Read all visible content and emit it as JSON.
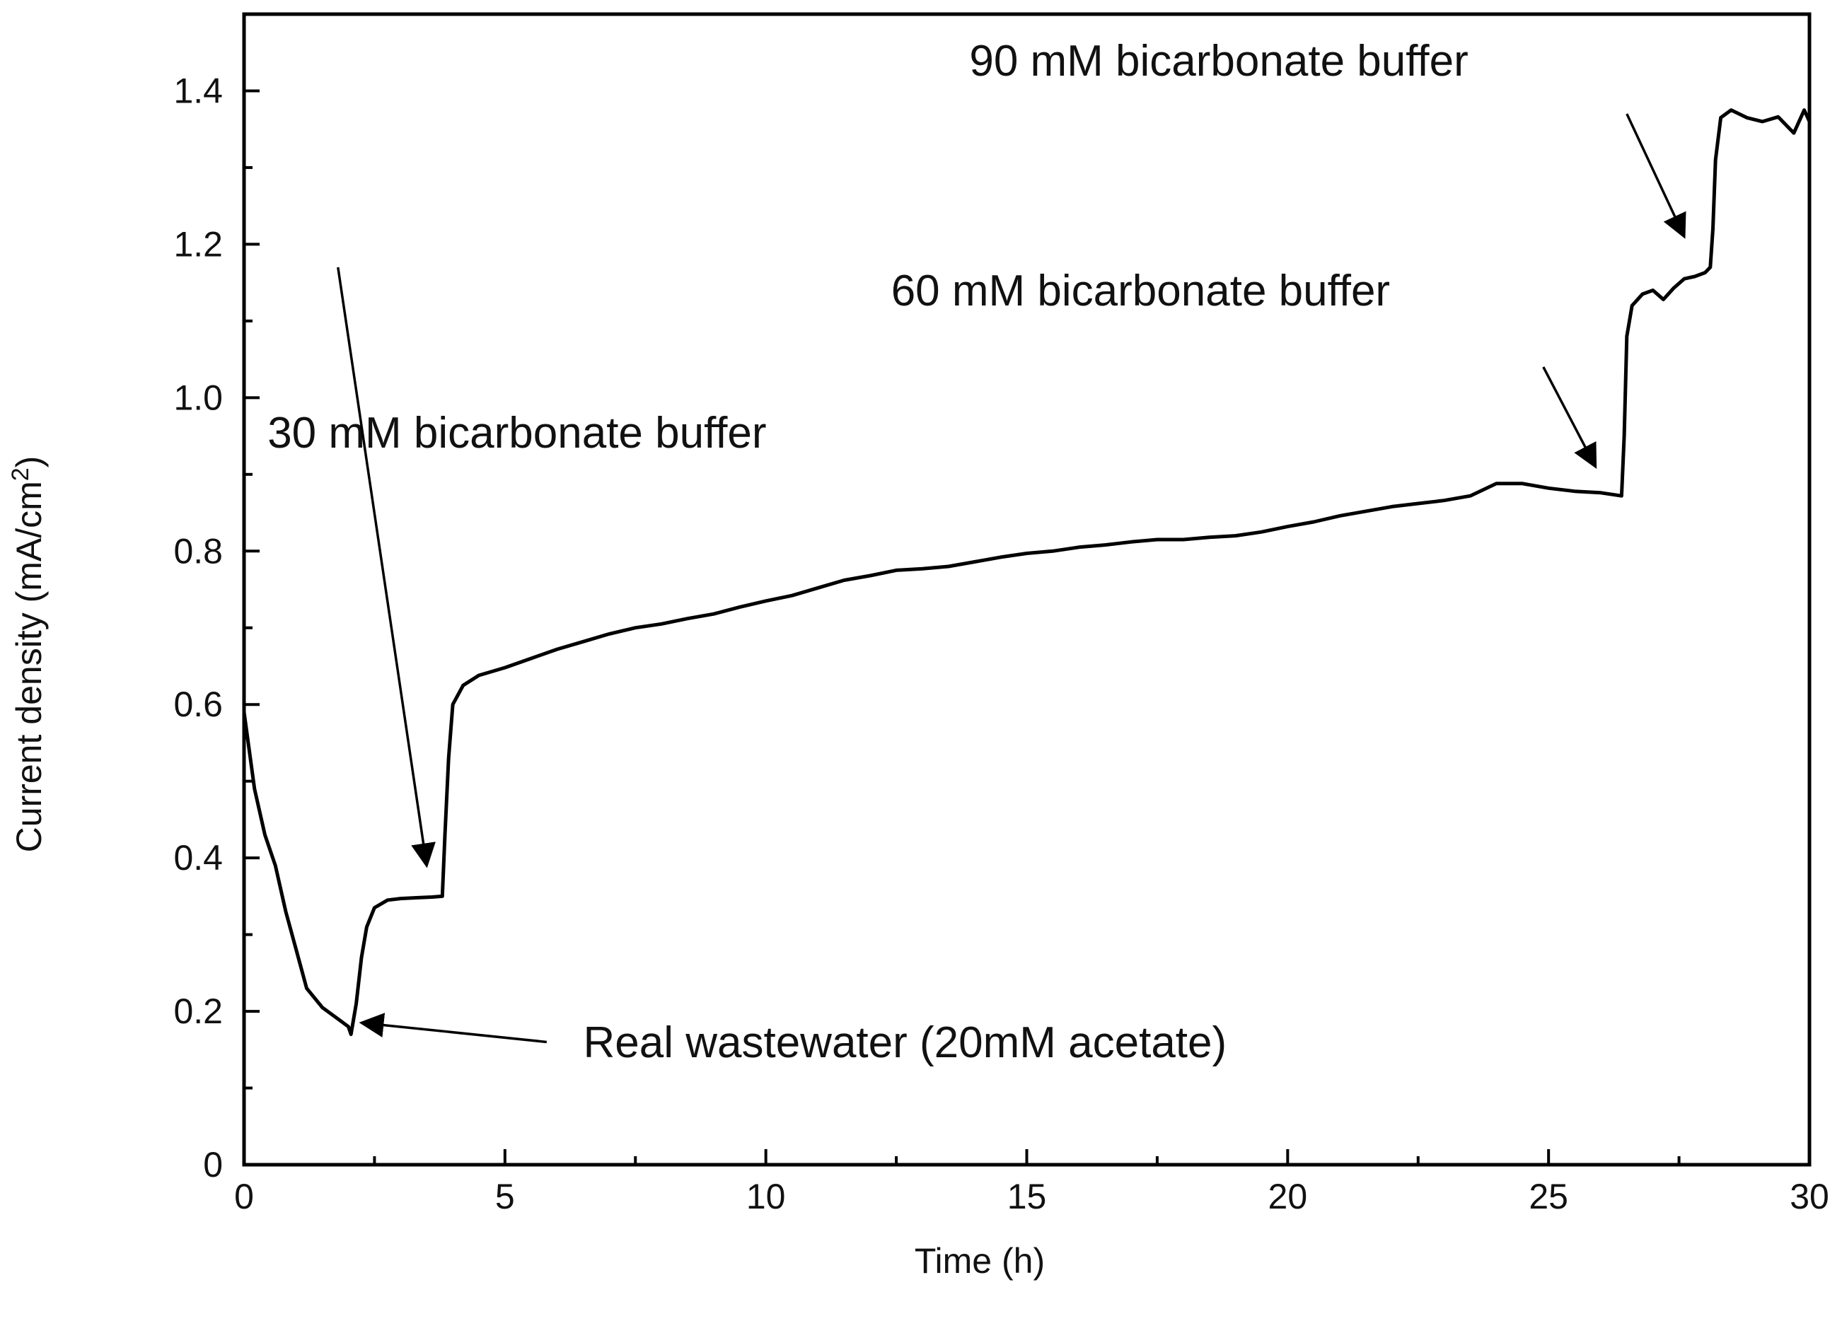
{
  "chart_data": {
    "type": "line",
    "xlabel": "Time (h)",
    "ylabel": "Current density (mA/cm",
    "ylabel_sup": "2",
    "ylabel_close": ")",
    "xlim": [
      0,
      30
    ],
    "ylim": [
      0,
      1.5
    ],
    "grid": false,
    "x_ticks": [
      0,
      5,
      10,
      15,
      20,
      25,
      30
    ],
    "x_tick_labels": [
      "0",
      "5",
      "10",
      "15",
      "20",
      "25",
      "30"
    ],
    "y_ticks": [
      0,
      0.2,
      0.4,
      0.6,
      0.8,
      1.0,
      1.2,
      1.4
    ],
    "y_tick_labels": [
      "0",
      "0.2",
      "0.4",
      "0.6",
      "0.8",
      "1.0",
      "1.2",
      "1.4"
    ],
    "series": [
      {
        "color": "#000000",
        "points": [
          [
            0.0,
            0.59
          ],
          [
            0.2,
            0.49
          ],
          [
            0.4,
            0.43
          ],
          [
            0.6,
            0.39
          ],
          [
            0.8,
            0.33
          ],
          [
            1.0,
            0.28
          ],
          [
            1.2,
            0.23
          ],
          [
            1.5,
            0.205
          ],
          [
            1.8,
            0.19
          ],
          [
            2.0,
            0.18
          ],
          [
            2.05,
            0.17
          ],
          [
            2.15,
            0.21
          ],
          [
            2.25,
            0.27
          ],
          [
            2.35,
            0.31
          ],
          [
            2.5,
            0.335
          ],
          [
            2.75,
            0.345
          ],
          [
            3.0,
            0.347
          ],
          [
            3.3,
            0.348
          ],
          [
            3.6,
            0.349
          ],
          [
            3.8,
            0.35
          ],
          [
            3.85,
            0.43
          ],
          [
            3.92,
            0.53
          ],
          [
            4.0,
            0.6
          ],
          [
            4.2,
            0.625
          ],
          [
            4.5,
            0.638
          ],
          [
            5.0,
            0.648
          ],
          [
            5.5,
            0.66
          ],
          [
            6.0,
            0.672
          ],
          [
            6.5,
            0.682
          ],
          [
            7.0,
            0.692
          ],
          [
            7.5,
            0.7
          ],
          [
            8.0,
            0.705
          ],
          [
            8.5,
            0.712
          ],
          [
            9.0,
            0.718
          ],
          [
            9.5,
            0.727
          ],
          [
            10.0,
            0.735
          ],
          [
            10.5,
            0.742
          ],
          [
            11.0,
            0.752
          ],
          [
            11.5,
            0.762
          ],
          [
            12.0,
            0.768
          ],
          [
            12.5,
            0.775
          ],
          [
            13.0,
            0.777
          ],
          [
            13.5,
            0.78
          ],
          [
            14.0,
            0.786
          ],
          [
            14.5,
            0.792
          ],
          [
            15.0,
            0.797
          ],
          [
            15.5,
            0.8
          ],
          [
            16.0,
            0.805
          ],
          [
            16.5,
            0.808
          ],
          [
            17.0,
            0.812
          ],
          [
            17.5,
            0.815
          ],
          [
            18.0,
            0.815
          ],
          [
            18.5,
            0.818
          ],
          [
            19.0,
            0.82
          ],
          [
            19.5,
            0.825
          ],
          [
            20.0,
            0.832
          ],
          [
            20.5,
            0.838
          ],
          [
            21.0,
            0.846
          ],
          [
            21.5,
            0.852
          ],
          [
            22.0,
            0.858
          ],
          [
            22.5,
            0.862
          ],
          [
            23.0,
            0.866
          ],
          [
            23.5,
            0.872
          ],
          [
            24.0,
            0.888
          ],
          [
            24.5,
            0.888
          ],
          [
            25.0,
            0.882
          ],
          [
            25.5,
            0.878
          ],
          [
            26.0,
            0.876
          ],
          [
            26.4,
            0.872
          ],
          [
            26.45,
            0.95
          ],
          [
            26.5,
            1.08
          ],
          [
            26.6,
            1.12
          ],
          [
            26.8,
            1.135
          ],
          [
            27.0,
            1.14
          ],
          [
            27.2,
            1.128
          ],
          [
            27.4,
            1.143
          ],
          [
            27.6,
            1.155
          ],
          [
            27.8,
            1.158
          ],
          [
            28.0,
            1.163
          ],
          [
            28.1,
            1.17
          ],
          [
            28.15,
            1.22
          ],
          [
            28.2,
            1.31
          ],
          [
            28.3,
            1.365
          ],
          [
            28.5,
            1.375
          ],
          [
            28.8,
            1.365
          ],
          [
            29.1,
            1.36
          ],
          [
            29.4,
            1.366
          ],
          [
            29.7,
            1.345
          ],
          [
            29.9,
            1.375
          ],
          [
            30.0,
            1.36
          ]
        ]
      }
    ],
    "annotations": [
      {
        "text": "30 mM bicarbonate buffer",
        "x": 0.45,
        "y": 0.935,
        "arrow_from": [
          1.8,
          1.17
        ],
        "arrow_to": [
          3.5,
          0.39
        ]
      },
      {
        "text": "Real wastewater (20mM acetate)",
        "x": 6.5,
        "y": 0.14,
        "arrow_from": [
          5.8,
          0.16
        ],
        "arrow_to": [
          2.25,
          0.185
        ]
      },
      {
        "text": "60 mM bicarbonate buffer",
        "x": 12.4,
        "y": 1.12,
        "arrow_from": [
          24.9,
          1.04
        ],
        "arrow_to": [
          25.9,
          0.91
        ]
      },
      {
        "text": "90 mM bicarbonate buffer",
        "x": 13.9,
        "y": 1.42,
        "arrow_from": [
          26.5,
          1.37
        ],
        "arrow_to": [
          27.6,
          1.21
        ]
      }
    ]
  }
}
